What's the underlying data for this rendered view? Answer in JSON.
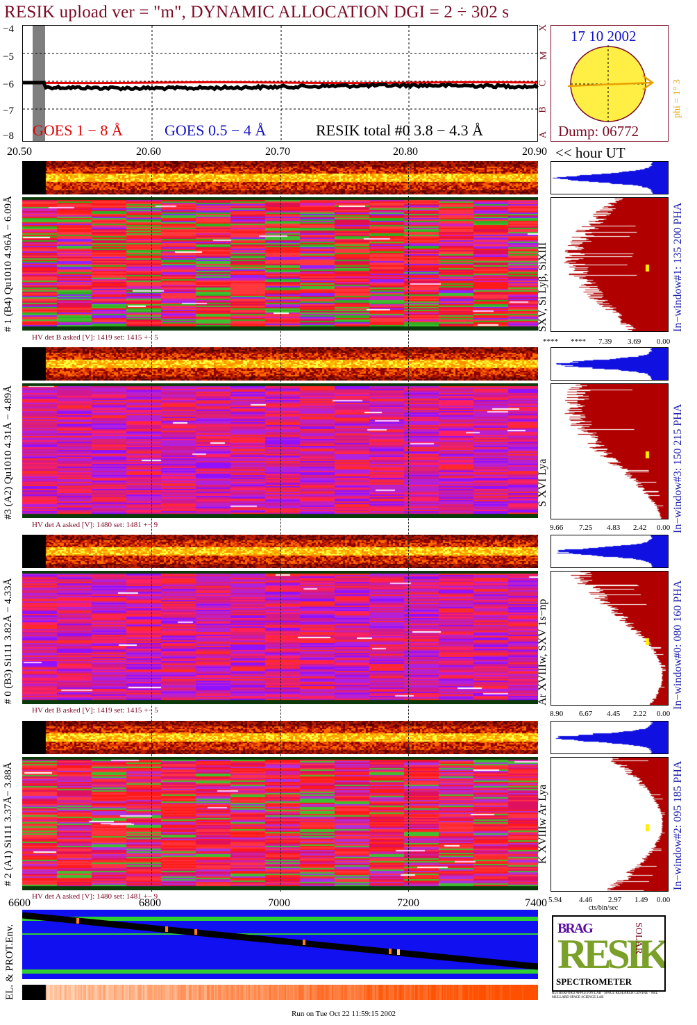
{
  "header": {
    "title": "RESIK upload ver = \"m\", DYNAMIC ALLOCATION  DGI =   2 ÷ 302 s"
  },
  "goes_panel": {
    "y_ticks": [
      "−4",
      "−5",
      "−6",
      "−7",
      "−8"
    ],
    "legend_goes18": "GOES 1 − 8 Å",
    "legend_goes054": "GOES 0.5 − 4 Å",
    "legend_resik": "RESIK total #0  3.8 − 4.3 Å",
    "class_letters": [
      "X",
      "M",
      "C",
      "B",
      "A"
    ],
    "colors": {
      "goes18": "#e00000",
      "goes054": "#1010c0",
      "resik": "#000000",
      "title": "#7a0a24"
    }
  },
  "sun_panel": {
    "date": "17 10 2002",
    "dump": "Dump: 06772",
    "phi_label": "phi =  1°  3"
  },
  "time_axis": {
    "labels": [
      "20.50",
      "20.60",
      "20.70",
      "20.80",
      "20.90"
    ],
    "unit_label": "<< hour UT"
  },
  "detectors": [
    {
      "id": "d1",
      "left_label": "# 1 (B4) Qu1010 4.96Å − 6.09Å",
      "line_label": "SXV, Si Lyβ, SiXIII",
      "window_label": "In−window#1:  135 200 PHA",
      "hv_text": "HV det B asked [V]:  1419 set:  1415 +−    5",
      "hist_ticks": [
        "****",
        "****",
        "7.39",
        "3.69",
        "0.00"
      ],
      "top_colors": [
        "#8a0000",
        "#d42a00",
        "#ff6a00",
        "#ffc000",
        "#ffff40"
      ],
      "main_colors": [
        "#ff2020",
        "#ff3a3a",
        "#ff3344",
        "#e01050",
        "#ff1a1a",
        "#40c030",
        "#30b020",
        "#9020ff",
        "#d020c0"
      ]
    },
    {
      "id": "d3",
      "left_label": "#3 (A2) Qu1010  4.31Å − 4.89Å",
      "line_label": "S XVI Lya",
      "window_label": "In−window#3:  150 215 PHA",
      "hv_text": "HV det A asked [V]:  1480 set:  1481 +−    9",
      "hist_ticks": [
        "9.66",
        "7.25",
        "4.83",
        "2.42",
        "0.00"
      ],
      "top_colors": [
        "#8a0000",
        "#d42a00",
        "#ff6a00",
        "#ffc000",
        "#ffff40"
      ],
      "main_colors": [
        "#d01890",
        "#e02070",
        "#ff2060",
        "#b020e0",
        "#9010ff",
        "#ff2a2a",
        "#c020c0"
      ]
    },
    {
      "id": "d0",
      "left_label": "# 0 (B3) Si111  3.82Å − 4.33Å",
      "line_label": "Ar XVIIIw, SXV 1s−np",
      "window_label": "In−window#0:  080 160 PHA",
      "hv_text": "HV det B asked [V]:  1419 set:  1415 +−    5",
      "hist_ticks": [
        "8.90",
        "6.67",
        "4.45",
        "2.22",
        "0.00"
      ],
      "top_colors": [
        "#8a0000",
        "#d42a00",
        "#ff6a00",
        "#ffc000",
        "#ffff40"
      ],
      "main_colors": [
        "#d01890",
        "#e02070",
        "#ff2060",
        "#b020e0",
        "#9010ff",
        "#ff2a2a",
        "#c020c0"
      ]
    },
    {
      "id": "d2",
      "left_label": "# 2 (A1) Si111  3.37Å−  3.88Å",
      "line_label": "K XVIIIw  Ar Lya",
      "window_label": "In−window#2:  095 185 PHA",
      "hist_ticks": [
        "5.94",
        "4.46",
        "2.97",
        "1.49",
        "0.00"
      ],
      "hv_text": "HV det A asked [V]:  1480 set:  1481 +−    9",
      "top_colors": [
        "#8a0000",
        "#d42a00",
        "#ff6a00",
        "#ffc000",
        "#ffff40"
      ],
      "main_colors": [
        "#ff2a2a",
        "#ff3344",
        "#e01060",
        "#d020a0",
        "#b030e0",
        "#40c030",
        "#ff1a1a"
      ]
    }
  ],
  "hist_unit": "cts/bin/sec",
  "env_panel": {
    "label": "EL. & PROT.Env.",
    "x_ticks": [
      "6600",
      "6800",
      "7000",
      "7200",
      "7400"
    ]
  },
  "logo": {
    "brand": "RESIK",
    "subtitle": "SPECTROMETER",
    "side_text": "SOLAR",
    "corner_text": "BRAG",
    "fine_print": "RUTHERFORD APPLETON LAB · SPACE RESEARCH CENTRE · NRL · MULLARD SPACE SCIENCE LAB"
  },
  "footer": {
    "run_text": "Run on Tue Oct 22 11:59:15 2002"
  }
}
